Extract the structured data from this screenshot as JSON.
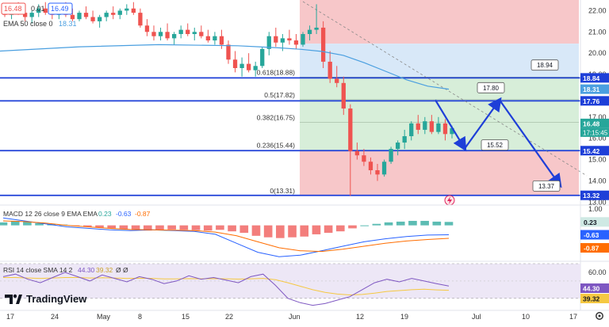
{
  "header": {
    "price_left": "16.48",
    "change": "0.01",
    "price_right": "16.49",
    "ema_label": "EMA 50 close 0",
    "ema_value": "18.31"
  },
  "colors": {
    "up": "#26a69a",
    "down": "#ef5350",
    "ema": "#4a9fe0",
    "level_line": "#1e3fd8",
    "red_zone": "#f7c7c9",
    "green_zone": "#d7eed9",
    "blue_zone": "#d8e8f8",
    "macd_line": "#2962ff",
    "signal_line": "#ff6d00",
    "rsi_line": "#7e57c2",
    "rsi_sma": "#f5c842",
    "rsi_band": "#ede7f6"
  },
  "chart_data": [
    {
      "type": "candlestick",
      "price_axis": {
        "ticks": [
          "22.00",
          "21.00",
          "20.00",
          "19.00",
          "17.00",
          "16.00",
          "15.00",
          "14.00",
          "13.00"
        ],
        "range": [
          12.9,
          22.5
        ]
      },
      "time_axis": {
        "ticks": [
          "17",
          "24",
          "May",
          "8",
          "15",
          "22",
          "Jun",
          "12",
          "19",
          "Jul",
          "10",
          "17"
        ]
      },
      "candles": [
        {
          "o": 21.9,
          "h": 22.3,
          "l": 21.7,
          "c": 21.8
        },
        {
          "o": 21.8,
          "h": 22.1,
          "l": 21.6,
          "c": 22.0
        },
        {
          "o": 22.0,
          "h": 22.4,
          "l": 21.8,
          "c": 21.9
        },
        {
          "o": 21.9,
          "h": 22.2,
          "l": 21.5,
          "c": 21.7
        },
        {
          "o": 21.7,
          "h": 22.0,
          "l": 21.4,
          "c": 21.9
        },
        {
          "o": 21.9,
          "h": 22.3,
          "l": 21.7,
          "c": 22.1
        },
        {
          "o": 22.1,
          "h": 22.4,
          "l": 21.8,
          "c": 21.9
        },
        {
          "o": 21.9,
          "h": 22.1,
          "l": 21.6,
          "c": 21.8
        },
        {
          "o": 21.8,
          "h": 22.2,
          "l": 21.6,
          "c": 22.0
        },
        {
          "o": 22.0,
          "h": 22.4,
          "l": 21.7,
          "c": 21.8
        },
        {
          "o": 21.8,
          "h": 22.1,
          "l": 21.5,
          "c": 21.6
        },
        {
          "o": 21.6,
          "h": 22.0,
          "l": 21.5,
          "c": 21.9
        },
        {
          "o": 21.9,
          "h": 22.2,
          "l": 21.6,
          "c": 21.7
        },
        {
          "o": 21.7,
          "h": 22.0,
          "l": 21.4,
          "c": 21.5
        },
        {
          "o": 21.5,
          "h": 21.8,
          "l": 21.2,
          "c": 21.7
        },
        {
          "o": 21.7,
          "h": 22.0,
          "l": 21.5,
          "c": 21.9
        },
        {
          "o": 21.9,
          "h": 22.2,
          "l": 21.6,
          "c": 21.8
        },
        {
          "o": 21.8,
          "h": 22.1,
          "l": 21.6,
          "c": 22.0
        },
        {
          "o": 22.0,
          "h": 22.3,
          "l": 21.8,
          "c": 22.1
        },
        {
          "o": 22.1,
          "h": 22.4,
          "l": 21.8,
          "c": 21.9
        },
        {
          "o": 21.9,
          "h": 22.1,
          "l": 21.2,
          "c": 21.3
        },
        {
          "o": 21.3,
          "h": 21.6,
          "l": 20.8,
          "c": 21.0
        },
        {
          "o": 21.0,
          "h": 21.3,
          "l": 20.6,
          "c": 20.8
        },
        {
          "o": 20.8,
          "h": 21.2,
          "l": 20.6,
          "c": 21.0
        },
        {
          "o": 21.0,
          "h": 21.4,
          "l": 20.6,
          "c": 20.7
        },
        {
          "o": 20.7,
          "h": 21.0,
          "l": 20.4,
          "c": 20.9
        },
        {
          "o": 20.9,
          "h": 21.3,
          "l": 20.7,
          "c": 21.1
        },
        {
          "o": 21.1,
          "h": 21.4,
          "l": 20.8,
          "c": 20.9
        },
        {
          "o": 20.9,
          "h": 21.2,
          "l": 20.6,
          "c": 21.0
        },
        {
          "o": 21.0,
          "h": 21.3,
          "l": 20.7,
          "c": 20.8
        },
        {
          "o": 20.8,
          "h": 21.1,
          "l": 20.5,
          "c": 20.6
        },
        {
          "o": 20.6,
          "h": 21.0,
          "l": 20.4,
          "c": 20.8
        },
        {
          "o": 20.8,
          "h": 21.1,
          "l": 20.2,
          "c": 20.4
        },
        {
          "o": 20.4,
          "h": 20.6,
          "l": 19.5,
          "c": 19.7
        },
        {
          "o": 19.7,
          "h": 20.1,
          "l": 19.1,
          "c": 19.3
        },
        {
          "o": 19.3,
          "h": 19.8,
          "l": 18.9,
          "c": 19.5
        },
        {
          "o": 19.5,
          "h": 20.0,
          "l": 19.1,
          "c": 19.2
        },
        {
          "o": 19.2,
          "h": 19.6,
          "l": 18.9,
          "c": 19.4
        },
        {
          "o": 19.4,
          "h": 20.3,
          "l": 19.3,
          "c": 20.2
        },
        {
          "o": 20.2,
          "h": 21.0,
          "l": 19.9,
          "c": 20.8
        },
        {
          "o": 20.8,
          "h": 21.2,
          "l": 20.3,
          "c": 20.5
        },
        {
          "o": 20.5,
          "h": 20.9,
          "l": 20.1,
          "c": 20.7
        },
        {
          "o": 20.7,
          "h": 21.1,
          "l": 20.4,
          "c": 20.6
        },
        {
          "o": 20.6,
          "h": 20.9,
          "l": 20.2,
          "c": 20.4
        },
        {
          "o": 20.4,
          "h": 21.0,
          "l": 20.3,
          "c": 20.9
        },
        {
          "o": 20.9,
          "h": 21.3,
          "l": 20.6,
          "c": 21.1
        },
        {
          "o": 21.1,
          "h": 22.3,
          "l": 20.9,
          "c": 21.2
        },
        {
          "o": 21.2,
          "h": 21.5,
          "l": 19.3,
          "c": 19.6
        },
        {
          "o": 19.6,
          "h": 20.1,
          "l": 18.6,
          "c": 18.8
        },
        {
          "o": 18.8,
          "h": 19.4,
          "l": 18.4,
          "c": 18.6
        },
        {
          "o": 18.6,
          "h": 18.9,
          "l": 17.1,
          "c": 17.4
        },
        {
          "o": 17.4,
          "h": 17.6,
          "l": 13.3,
          "c": 15.4
        },
        {
          "o": 15.4,
          "h": 15.8,
          "l": 15.0,
          "c": 15.2
        },
        {
          "o": 15.2,
          "h": 15.5,
          "l": 14.7,
          "c": 14.9
        },
        {
          "o": 14.9,
          "h": 15.1,
          "l": 14.3,
          "c": 14.5
        },
        {
          "o": 14.5,
          "h": 14.8,
          "l": 14.0,
          "c": 14.3
        },
        {
          "o": 14.3,
          "h": 15.0,
          "l": 14.2,
          "c": 14.9
        },
        {
          "o": 14.9,
          "h": 15.6,
          "l": 14.8,
          "c": 15.5
        },
        {
          "o": 15.5,
          "h": 15.9,
          "l": 15.2,
          "c": 15.8
        },
        {
          "o": 15.8,
          "h": 16.4,
          "l": 15.5,
          "c": 16.1
        },
        {
          "o": 16.1,
          "h": 16.8,
          "l": 15.9,
          "c": 16.7
        },
        {
          "o": 16.7,
          "h": 17.1,
          "l": 16.2,
          "c": 16.4
        },
        {
          "o": 16.4,
          "h": 17.0,
          "l": 16.2,
          "c": 16.8
        },
        {
          "o": 16.8,
          "h": 17.1,
          "l": 16.2,
          "c": 16.3
        },
        {
          "o": 16.3,
          "h": 17.0,
          "l": 16.2,
          "c": 16.7
        },
        {
          "o": 16.7,
          "h": 16.9,
          "l": 15.9,
          "c": 16.2
        },
        {
          "o": 16.2,
          "h": 16.6,
          "l": 16.0,
          "c": 16.48
        }
      ],
      "ema50": [
        20.35,
        20.3,
        20.25,
        20.18,
        20.08,
        19.9,
        19.55,
        19.15,
        18.75,
        18.45,
        18.31
      ],
      "levels": [
        {
          "price": 18.84,
          "label": "18.84"
        },
        {
          "price": 17.76,
          "label": "17.76"
        },
        {
          "price": 15.42,
          "label": "15.42"
        },
        {
          "price": 13.32,
          "label": "13.32"
        }
      ],
      "fib_labels": [
        {
          "price": 18.88,
          "label": "0.618(18.88)"
        },
        {
          "price": 17.82,
          "label": "0.5(17.82)"
        },
        {
          "price": 16.75,
          "label": "0.382(16.75)"
        },
        {
          "price": 15.44,
          "label": "0.236(15.44)"
        },
        {
          "price": 13.31,
          "label": "0(13.31)"
        }
      ],
      "projection_points": [
        {
          "label": "17.80",
          "price": 17.8
        },
        {
          "label": "15.52",
          "price": 15.52
        },
        {
          "label": "18.94",
          "price": 18.94
        },
        {
          "label": "13.37",
          "price": 13.37
        }
      ],
      "axis_pills": {
        "p1884": "18.84",
        "p1831": "18.31",
        "p1776": "17.76",
        "current": "16.48",
        "countdown": "17:15:45",
        "p1542": "15.42",
        "p1332": "13.32"
      }
    },
    {
      "type": "macd",
      "label": "MACD 12 26 close 9 EMA EMA",
      "values": [
        "0.23",
        "-0.63",
        "-0.87"
      ],
      "axis_ticks": [
        "1.00"
      ],
      "pills": {
        "hist": "0.23",
        "macd": "-0.63",
        "signal": "-0.87"
      },
      "histogram": [
        0.2,
        0.3,
        0.25,
        0.15,
        0.1,
        0.05,
        -0.05,
        -0.1,
        -0.15,
        -0.2,
        -0.25,
        -0.3,
        -0.35,
        -0.3,
        -0.28,
        -0.3,
        -0.32,
        -0.35,
        -0.3,
        -0.4,
        -0.5,
        -0.7,
        -0.8,
        -0.85,
        -0.8,
        -0.75,
        -0.6,
        -0.5,
        -0.4,
        -0.2,
        0.0,
        0.1,
        0.2,
        0.25,
        0.3,
        0.3,
        0.25,
        0.23
      ],
      "macd": [
        0.5,
        0.3,
        0.1,
        -0.1,
        -0.2,
        -0.3,
        -0.35,
        -0.3,
        -0.35,
        -0.4,
        -0.6,
        -1.2,
        -1.8,
        -2.1,
        -2.0,
        -1.7,
        -1.4,
        -1.1,
        -0.9,
        -0.75,
        -0.65,
        -0.63
      ],
      "signal": [
        0.3,
        0.25,
        0.15,
        0.0,
        -0.1,
        -0.2,
        -0.28,
        -0.3,
        -0.32,
        -0.35,
        -0.45,
        -0.7,
        -1.1,
        -1.5,
        -1.7,
        -1.75,
        -1.6,
        -1.4,
        -1.2,
        -1.05,
        -0.95,
        -0.87
      ]
    },
    {
      "type": "rsi",
      "label": "RSI 14 close SMA 14 2",
      "values": [
        "44.30",
        "39.32",
        "Ø",
        "Ø"
      ],
      "axis_ticks": [
        "60.00"
      ],
      "pills": {
        "rsi": "44.30",
        "sma": "39.32"
      },
      "rsi": [
        55,
        58,
        52,
        48,
        54,
        60,
        55,
        50,
        57,
        53,
        49,
        55,
        52,
        47,
        50,
        56,
        52,
        54,
        51,
        48,
        55,
        58,
        45,
        30,
        25,
        22,
        24,
        28,
        32,
        40,
        48,
        52,
        49,
        53,
        50,
        47,
        44.3
      ],
      "sma": [
        54,
        54,
        53.5,
        53,
        53.5,
        54,
        54,
        53.5,
        53.8,
        53.5,
        53,
        53.2,
        53,
        52.5,
        52.5,
        52.8,
        52.6,
        52.8,
        52.6,
        52.2,
        52.6,
        53,
        51.5,
        48,
        44,
        40,
        37,
        35,
        34,
        34.5,
        36,
        38,
        39,
        40,
        40.5,
        39.8,
        39.32
      ]
    }
  ],
  "brand": {
    "name": "TradingView"
  },
  "settings_icon": "gear-icon"
}
